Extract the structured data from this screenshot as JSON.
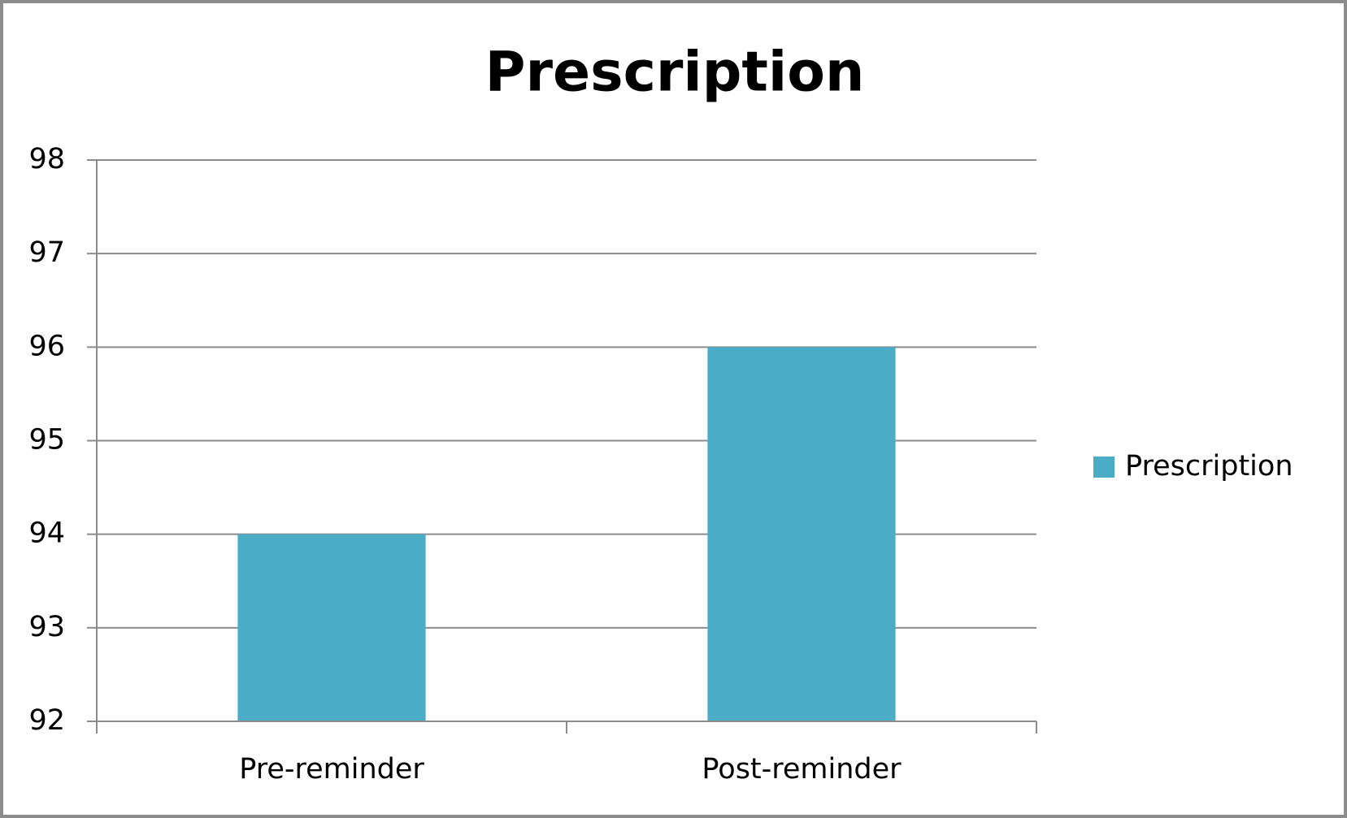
{
  "chart_data": {
    "type": "bar",
    "title": "Prescription",
    "categories": [
      "Pre-reminder",
      "Post-reminder"
    ],
    "series": [
      {
        "name": "Prescription",
        "color": "#4bacc6",
        "values": [
          94,
          96
        ]
      }
    ],
    "ylim": [
      92,
      98
    ],
    "yticks": [
      92,
      93,
      94,
      95,
      96,
      97,
      98
    ],
    "grid": true,
    "legend": "right"
  }
}
